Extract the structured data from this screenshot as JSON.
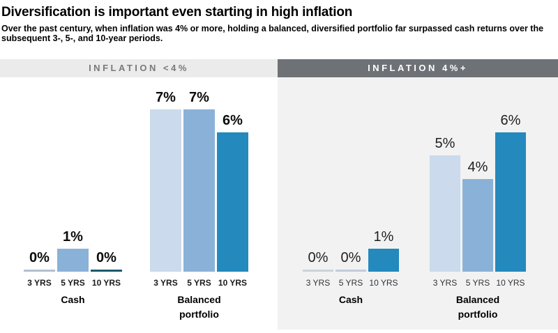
{
  "header": {
    "title": "Diversification is important even starting in high inflation",
    "subtitle": "Over the past century, when inflation was 4% or more, holding a balanced, diversified portfolio far surpassed cash returns over the subsequent 3-, 5-, and 10-year periods."
  },
  "colors": {
    "series_3yrs": "#cbdaec",
    "series_5yrs": "#8ab2d8",
    "series_10yrs": "#2489bd",
    "panel_low_header_bg": "#ebebeb",
    "panel_low_header_text": "#77797d",
    "panel_high_header_bg": "#6e7276",
    "panel_high_header_text": "#ffffff",
    "panel_high_bg": "#f2f2f2"
  },
  "chart_data": [
    {
      "type": "bar",
      "title": "INFLATION <4%",
      "unit": "%",
      "ylim": [
        0,
        8
      ],
      "grid": false,
      "legend": false,
      "categories": [
        "3 YRS",
        "5 YRS",
        "10 YRS"
      ],
      "series_colors": [
        "#cbdaec",
        "#8ab2d8",
        "#2489bd"
      ],
      "groups": [
        {
          "label": "Cash",
          "values": [
            0,
            1,
            0
          ],
          "value_labels": [
            "0%",
            "1%",
            "0%"
          ],
          "zero_colors": [
            "#b3bfd0",
            null,
            "#1b5a6d"
          ]
        },
        {
          "label": "Balanced portfolio",
          "values": [
            7,
            7,
            6
          ],
          "value_labels": [
            "7%",
            "7%",
            "6%"
          ],
          "zero_colors": [
            null,
            null,
            null
          ]
        }
      ]
    },
    {
      "type": "bar",
      "title": "INFLATION 4%+",
      "unit": "%",
      "ylim": [
        0,
        8
      ],
      "grid": false,
      "legend": false,
      "categories": [
        "3 YRS",
        "5 YRS",
        "10 YRS"
      ],
      "series_colors": [
        "#cbdaec",
        "#8ab2d8",
        "#2489bd"
      ],
      "groups": [
        {
          "label": "Cash",
          "values": [
            0,
            0,
            1
          ],
          "value_labels": [
            "0%",
            "0%",
            "1%"
          ],
          "zero_colors": [
            "#cdd3d9",
            "#c2cbdc",
            null
          ]
        },
        {
          "label": "Balanced portfolio",
          "values": [
            5,
            4,
            6
          ],
          "value_labels": [
            "5%",
            "4%",
            "6%"
          ],
          "zero_colors": [
            null,
            null,
            null
          ]
        }
      ]
    }
  ]
}
